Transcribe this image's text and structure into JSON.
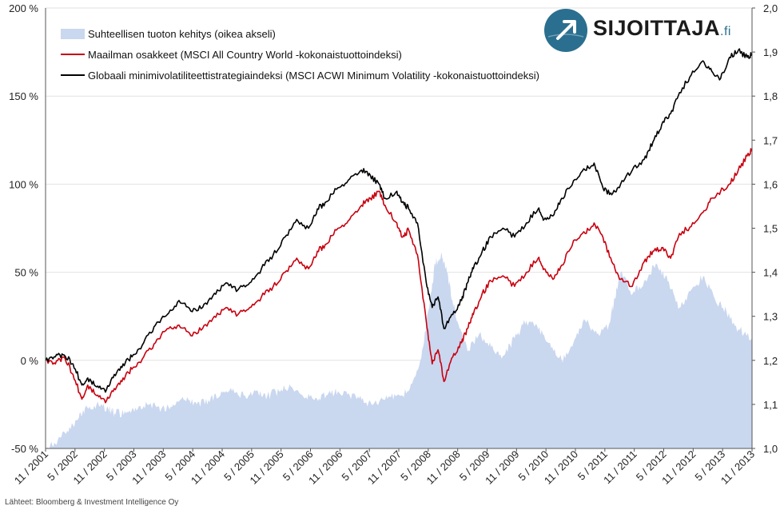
{
  "chart_data": {
    "type": "line",
    "left_axis": {
      "ticks": [
        -50,
        0,
        50,
        100,
        150,
        200
      ],
      "tick_labels": [
        "-50 %",
        "0 %",
        "50 %",
        "100 %",
        "150 %",
        "200 %"
      ],
      "range": [
        -50,
        200
      ]
    },
    "right_axis": {
      "ticks": [
        1.0,
        1.1,
        1.2,
        1.3,
        1.4,
        1.5,
        1.6,
        1.7,
        1.8,
        1.9,
        2.0
      ],
      "tick_labels": [
        "1,0",
        "1,1",
        "1,2",
        "1,3",
        "1,4",
        "1,5",
        "1,6",
        "1,7",
        "1,8",
        "1,9",
        "2,0"
      ],
      "range": [
        1.0,
        2.0
      ]
    },
    "x_tick_labels": [
      "11 / 2001",
      "5 / 2002",
      "11 / 2002",
      "5 / 2003",
      "11 / 2003",
      "5 / 2004",
      "11 / 2004",
      "5 / 2005",
      "11 / 2005",
      "5 / 2006",
      "11 / 2006",
      "5 / 2007",
      "11 / 2007",
      "5 / 2008",
      "11 / 2008",
      "5 / 2009",
      "11 / 2009",
      "5 / 2010",
      "11 / 2010",
      "5 / 2011",
      "11 / 2011",
      "5 / 2012",
      "11 / 2012",
      "5 / 2013",
      "11 / 2013"
    ],
    "x_range": [
      2001.833,
      2013.833
    ],
    "grid": "horizontal",
    "legend": "top-left",
    "series": [
      {
        "name": "Suhteellisen tuoton kehitys (oikea akseli)",
        "type": "area",
        "axis": "right",
        "color": "#c9d7ef",
        "x": [
          2001.833,
          2002.0,
          2002.2,
          2002.4,
          2002.5,
          2002.7,
          2002.9,
          2003.0,
          2003.2,
          2003.4,
          2003.6,
          2003.8,
          2004.0,
          2004.2,
          2004.4,
          2004.6,
          2004.8,
          2005.0,
          2005.2,
          2005.4,
          2005.6,
          2005.8,
          2006.0,
          2006.2,
          2006.4,
          2006.6,
          2006.8,
          2007.0,
          2007.2,
          2007.4,
          2007.6,
          2007.8,
          2008.0,
          2008.2,
          2008.35,
          2008.45,
          2008.55,
          2008.65,
          2008.75,
          2008.85,
          2009.0,
          2009.2,
          2009.4,
          2009.6,
          2009.8,
          2010.0,
          2010.2,
          2010.4,
          2010.6,
          2010.8,
          2011.0,
          2011.2,
          2011.4,
          2011.5,
          2011.6,
          2011.8,
          2012.0,
          2012.2,
          2012.4,
          2012.6,
          2012.8,
          2013.0,
          2013.2,
          2013.4,
          2013.6,
          2013.833
        ],
        "values": [
          1.0,
          1.01,
          1.04,
          1.07,
          1.09,
          1.1,
          1.09,
          1.08,
          1.08,
          1.09,
          1.1,
          1.09,
          1.1,
          1.11,
          1.1,
          1.11,
          1.12,
          1.13,
          1.12,
          1.13,
          1.12,
          1.13,
          1.14,
          1.12,
          1.11,
          1.12,
          1.13,
          1.12,
          1.11,
          1.1,
          1.11,
          1.12,
          1.13,
          1.2,
          1.32,
          1.42,
          1.44,
          1.4,
          1.33,
          1.28,
          1.22,
          1.26,
          1.23,
          1.21,
          1.25,
          1.29,
          1.27,
          1.24,
          1.2,
          1.24,
          1.29,
          1.26,
          1.28,
          1.34,
          1.4,
          1.35,
          1.38,
          1.42,
          1.38,
          1.32,
          1.36,
          1.39,
          1.34,
          1.31,
          1.27,
          1.25
        ]
      },
      {
        "name": "Maailman osakkeet (MSCI All Country World -kokonaistuottoindeksi)",
        "type": "line",
        "axis": "left",
        "color": "#c8000f",
        "x": [
          2001.833,
          2002.0,
          2002.15,
          2002.3,
          2002.45,
          2002.55,
          2002.7,
          2002.85,
          2003.0,
          2003.15,
          2003.3,
          2003.5,
          2003.7,
          2003.9,
          2004.1,
          2004.3,
          2004.5,
          2004.7,
          2004.9,
          2005.1,
          2005.3,
          2005.5,
          2005.7,
          2005.9,
          2006.1,
          2006.3,
          2006.45,
          2006.6,
          2006.8,
          2007.0,
          2007.2,
          2007.35,
          2007.5,
          2007.6,
          2007.8,
          2007.9,
          2008.0,
          2008.15,
          2008.3,
          2008.4,
          2008.5,
          2008.6,
          2008.75,
          2008.9,
          2009.0,
          2009.1,
          2009.25,
          2009.4,
          2009.6,
          2009.8,
          2010.0,
          2010.2,
          2010.3,
          2010.45,
          2010.6,
          2010.8,
          2011.0,
          2011.15,
          2011.3,
          2011.45,
          2011.6,
          2011.8,
          2012.0,
          2012.15,
          2012.3,
          2012.45,
          2012.6,
          2012.8,
          2013.0,
          2013.15,
          2013.3,
          2013.45,
          2013.6,
          2013.75,
          2013.833
        ],
        "values": [
          0,
          -2,
          2,
          -8,
          -22,
          -14,
          -20,
          -24,
          -16,
          -10,
          -5,
          2,
          10,
          18,
          20,
          14,
          18,
          25,
          30,
          26,
          30,
          36,
          42,
          50,
          58,
          52,
          62,
          66,
          75,
          80,
          88,
          92,
          96,
          88,
          78,
          70,
          74,
          60,
          22,
          -2,
          6,
          -12,
          2,
          10,
          18,
          26,
          38,
          45,
          48,
          42,
          50,
          58,
          52,
          46,
          54,
          68,
          72,
          78,
          70,
          56,
          46,
          42,
          56,
          62,
          64,
          58,
          72,
          76,
          84,
          92,
          96,
          100,
          108,
          116,
          120
        ]
      },
      {
        "name": "Globaali minimivolatiliteettistrategiaindeksi (MSCI ACWI Minimum Volatility -kokonaistuottoindeksi)",
        "type": "line",
        "axis": "left",
        "color": "#000000",
        "x": [
          2001.833,
          2002.0,
          2002.15,
          2002.3,
          2002.45,
          2002.55,
          2002.7,
          2002.85,
          2003.0,
          2003.15,
          2003.3,
          2003.5,
          2003.7,
          2003.9,
          2004.1,
          2004.3,
          2004.5,
          2004.7,
          2004.9,
          2005.1,
          2005.3,
          2005.5,
          2005.7,
          2005.9,
          2006.1,
          2006.3,
          2006.45,
          2006.6,
          2006.8,
          2007.0,
          2007.2,
          2007.35,
          2007.5,
          2007.6,
          2007.8,
          2007.9,
          2008.0,
          2008.15,
          2008.3,
          2008.4,
          2008.5,
          2008.6,
          2008.75,
          2008.9,
          2009.0,
          2009.1,
          2009.25,
          2009.4,
          2009.6,
          2009.8,
          2010.0,
          2010.2,
          2010.3,
          2010.45,
          2010.6,
          2010.8,
          2011.0,
          2011.15,
          2011.3,
          2011.45,
          2011.6,
          2011.8,
          2012.0,
          2012.15,
          2012.3,
          2012.45,
          2012.6,
          2012.8,
          2013.0,
          2013.15,
          2013.3,
          2013.45,
          2013.6,
          2013.75,
          2013.833
        ],
        "values": [
          0,
          2,
          3,
          -2,
          -14,
          -10,
          -15,
          -18,
          -8,
          -2,
          2,
          10,
          20,
          26,
          34,
          28,
          30,
          38,
          44,
          40,
          44,
          52,
          60,
          70,
          80,
          75,
          86,
          90,
          98,
          103,
          108,
          105,
          100,
          92,
          96,
          90,
          86,
          78,
          44,
          30,
          36,
          18,
          26,
          34,
          44,
          52,
          62,
          70,
          75,
          70,
          78,
          86,
          80,
          82,
          92,
          102,
          108,
          112,
          98,
          94,
          100,
          108,
          114,
          124,
          134,
          140,
          152,
          162,
          170,
          164,
          160,
          172,
          176,
          172,
          174
        ]
      }
    ]
  },
  "source_text": "Lähteet: Bloomberg & Investment Intelligence Oy",
  "logo": {
    "name": "SIJOITTAJA",
    "suffix": ".fi",
    "icon": "arrow-up-right-circle-icon",
    "color": "#2a6f8f"
  }
}
